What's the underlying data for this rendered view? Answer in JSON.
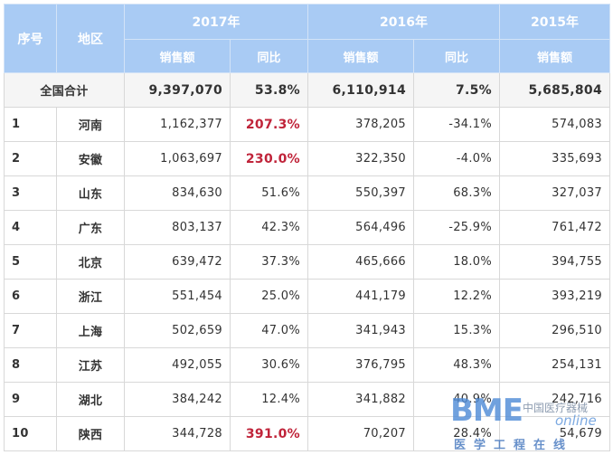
{
  "header": {
    "idx": "序号",
    "region": "地区",
    "y2017": "2017年",
    "y2016": "2016年",
    "y2015": "2015年",
    "sales": "销售额",
    "yoy": "同比"
  },
  "total": {
    "label": "全国合计",
    "s2017": "9,397,070",
    "yoy2017": "53.8%",
    "s2016": "6,110,914",
    "yoy2016": "7.5%",
    "s2015": "5,685,804"
  },
  "rows": [
    {
      "idx": "1",
      "region": "河南",
      "s2017": "1,162,377",
      "yoy2017": "207.3%",
      "s2016": "378,205",
      "yoy2016": "-34.1%",
      "s2015": "574,083"
    },
    {
      "idx": "2",
      "region": "安徽",
      "s2017": "1,063,697",
      "yoy2017": "230.0%",
      "s2016": "322,350",
      "yoy2016": "-4.0%",
      "s2015": "335,693"
    },
    {
      "idx": "3",
      "region": "山东",
      "s2017": "834,630",
      "yoy2017": "51.6%",
      "s2016": "550,397",
      "yoy2016": "68.3%",
      "s2015": "327,037"
    },
    {
      "idx": "4",
      "region": "广东",
      "s2017": "803,137",
      "yoy2017": "42.3%",
      "s2016": "564,496",
      "yoy2016": "-25.9%",
      "s2015": "761,472"
    },
    {
      "idx": "5",
      "region": "北京",
      "s2017": "639,472",
      "yoy2017": "37.3%",
      "s2016": "465,666",
      "yoy2016": "18.0%",
      "s2015": "394,755"
    },
    {
      "idx": "6",
      "region": "浙江",
      "s2017": "551,454",
      "yoy2017": "25.0%",
      "s2016": "441,179",
      "yoy2016": "12.2%",
      "s2015": "393,219"
    },
    {
      "idx": "7",
      "region": "上海",
      "s2017": "502,659",
      "yoy2017": "47.0%",
      "s2016": "341,943",
      "yoy2016": "15.3%",
      "s2015": "296,510"
    },
    {
      "idx": "8",
      "region": "江苏",
      "s2017": "492,055",
      "yoy2017": "30.6%",
      "s2016": "376,795",
      "yoy2016": "48.3%",
      "s2015": "254,131"
    },
    {
      "idx": "9",
      "region": "湖北",
      "s2017": "384,242",
      "yoy2017": "12.4%",
      "s2016": "341,882",
      "yoy2016": "40.9%",
      "s2015": "242,716"
    },
    {
      "idx": "10",
      "region": "陕西",
      "s2017": "344,728",
      "yoy2017": "391.0%",
      "s2016": "70,207",
      "yoy2016": "28.4%",
      "s2015": "54,679"
    }
  ],
  "colors": {
    "header_bg": "#a9cbf4",
    "highlight": "#c0243a"
  },
  "watermark": {
    "brand": "BME",
    "cn_name": "中国医疗器械",
    "online": "online",
    "subtitle": "医学工程在线"
  }
}
